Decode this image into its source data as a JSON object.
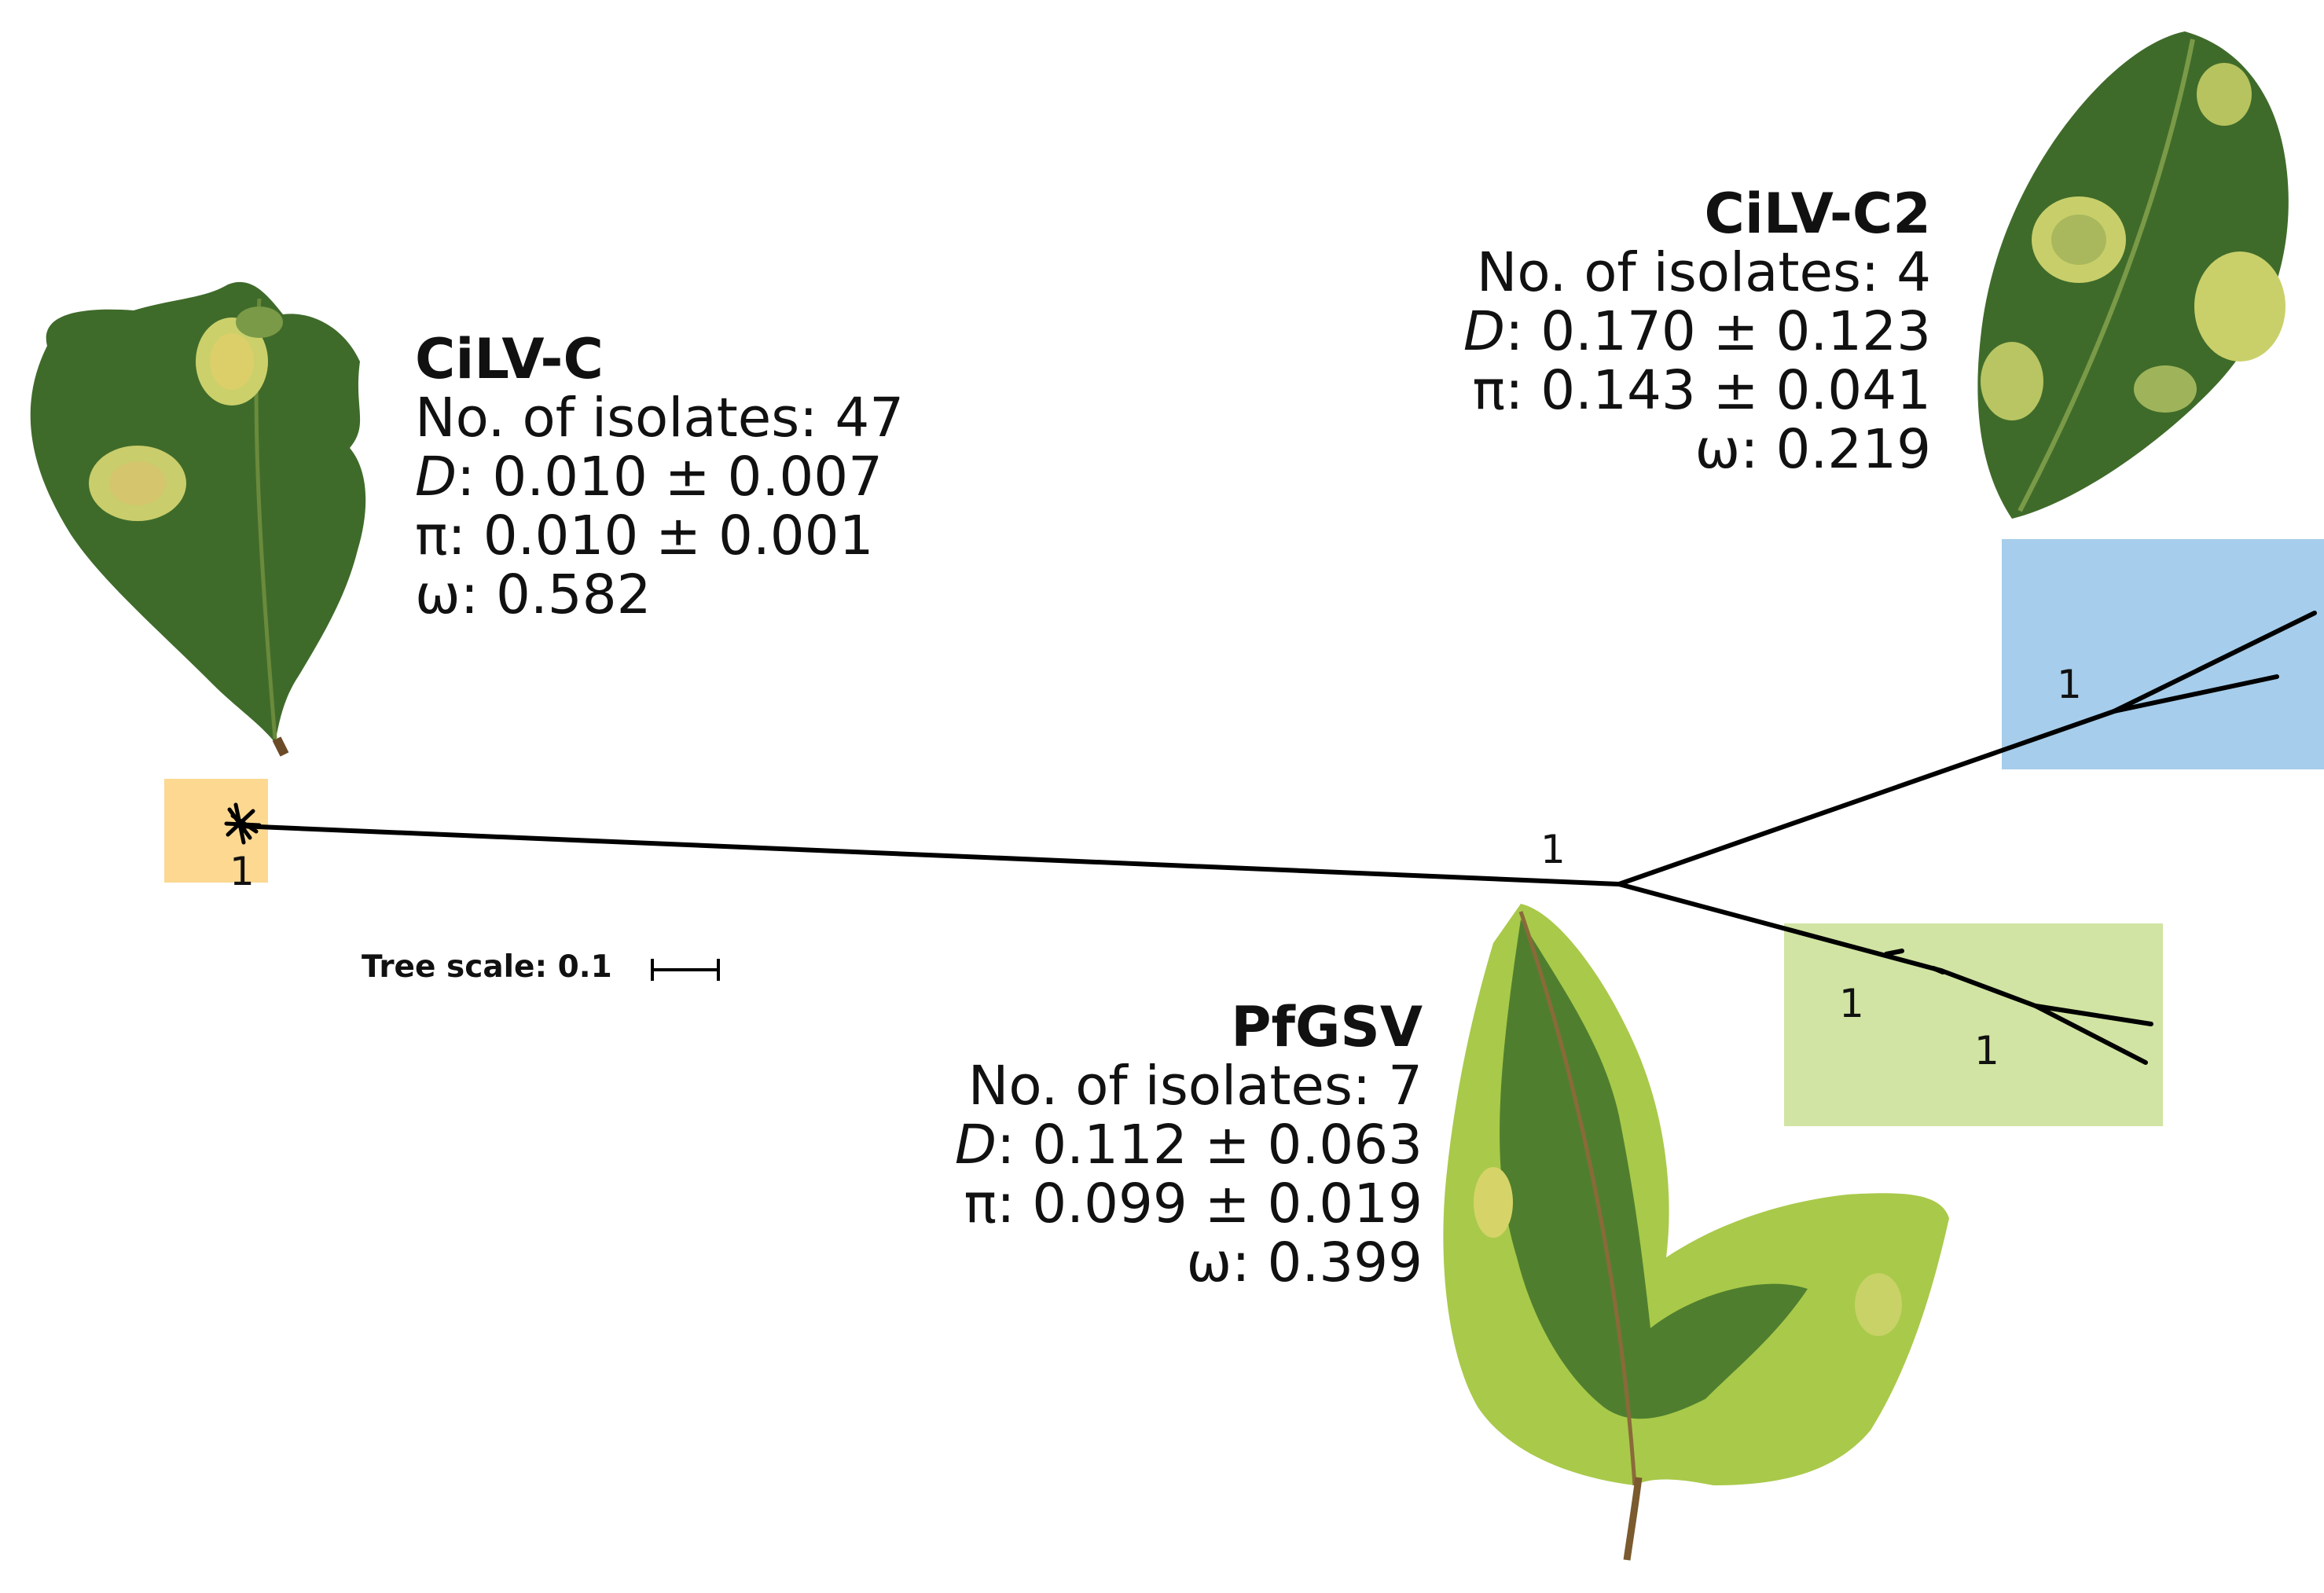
{
  "colors": {
    "cilvc": "#fcd891",
    "cilvc2": "#a6cdeb",
    "pfgsv": "#d1e4a3",
    "branch": "#000000",
    "leaf_dark": "#3f6b2a",
    "leaf_mid": "#4f7f2e",
    "leaf_yellow": "#d6d468",
    "leaf_light": "#a9c94a"
  },
  "clades": [
    {
      "name": "CiLV-C",
      "lines": [
        {
          "label": "No. of isolates: ",
          "value": "47"
        },
        {
          "label": "D",
          "value": ": 0.010  ±  0.007"
        },
        {
          "label": "π",
          "value": ": 0.010  ± 0.001"
        },
        {
          "label": "ω",
          "value": ": 0.582"
        }
      ],
      "support": "1"
    },
    {
      "name": "CiLV-C2",
      "lines": [
        {
          "label": "No. of isolates: ",
          "value": "4"
        },
        {
          "label": "D",
          "value": ": 0.170  ± 0.123"
        },
        {
          "label": "π",
          "value": ": 0.143 ± 0.041"
        },
        {
          "label": "ω",
          "value": ": 0.219"
        }
      ],
      "support": "1"
    },
    {
      "name": "PfGSV",
      "lines": [
        {
          "label": "No. of isolates: ",
          "value": "7"
        },
        {
          "label": "D",
          "value": ":  0.112 ± 0.063"
        },
        {
          "label": "π",
          "value": ": 0.099 ± 0.019"
        },
        {
          "label": "ω",
          "value": ": 0.399"
        }
      ],
      "support_outer": "1",
      "support_inner": "1"
    }
  ],
  "root_support": "1",
  "tree_scale": "Tree scale: 0.1"
}
